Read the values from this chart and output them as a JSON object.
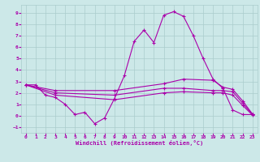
{
  "xlabel": "Windchill (Refroidissement éolien,°C)",
  "background_color": "#cce8e8",
  "grid_color": "#aacccc",
  "line_color": "#aa00aa",
  "xlim": [
    -0.5,
    23.5
  ],
  "ylim": [
    -1.5,
    9.7
  ],
  "yticks": [
    -1,
    0,
    1,
    2,
    3,
    4,
    5,
    6,
    7,
    8,
    9
  ],
  "xticks": [
    0,
    1,
    2,
    3,
    4,
    5,
    6,
    7,
    8,
    9,
    10,
    11,
    12,
    13,
    14,
    15,
    16,
    17,
    18,
    19,
    20,
    21,
    22,
    23
  ],
  "series1": [
    [
      0,
      2.7
    ],
    [
      1,
      2.7
    ],
    [
      2,
      1.8
    ],
    [
      3,
      1.6
    ],
    [
      4,
      1.0
    ],
    [
      5,
      0.1
    ],
    [
      6,
      0.3
    ],
    [
      7,
      -0.7
    ],
    [
      8,
      -0.2
    ],
    [
      9,
      1.5
    ],
    [
      10,
      3.5
    ],
    [
      11,
      6.5
    ],
    [
      12,
      7.5
    ],
    [
      13,
      6.4
    ],
    [
      14,
      8.8
    ],
    [
      15,
      9.1
    ],
    [
      16,
      8.7
    ],
    [
      17,
      7.0
    ],
    [
      18,
      5.0
    ],
    [
      19,
      3.2
    ],
    [
      20,
      2.4
    ],
    [
      21,
      0.5
    ],
    [
      22,
      0.1
    ],
    [
      23,
      0.1
    ]
  ],
  "series2": [
    [
      0,
      2.7
    ],
    [
      3,
      2.2
    ],
    [
      9,
      2.2
    ],
    [
      14,
      2.8
    ],
    [
      16,
      3.2
    ],
    [
      19,
      3.1
    ],
    [
      20,
      2.5
    ],
    [
      21,
      2.3
    ],
    [
      22,
      1.3
    ],
    [
      23,
      0.15
    ]
  ],
  "series3": [
    [
      0,
      2.7
    ],
    [
      3,
      2.0
    ],
    [
      9,
      1.8
    ],
    [
      14,
      2.4
    ],
    [
      16,
      2.4
    ],
    [
      19,
      2.2
    ],
    [
      20,
      2.2
    ],
    [
      21,
      2.1
    ],
    [
      22,
      1.1
    ],
    [
      23,
      0.1
    ]
  ],
  "series4": [
    [
      0,
      2.7
    ],
    [
      3,
      1.8
    ],
    [
      9,
      1.4
    ],
    [
      14,
      2.0
    ],
    [
      16,
      2.1
    ],
    [
      19,
      2.0
    ],
    [
      20,
      2.0
    ],
    [
      21,
      1.8
    ],
    [
      22,
      0.9
    ],
    [
      23,
      0.05
    ]
  ]
}
